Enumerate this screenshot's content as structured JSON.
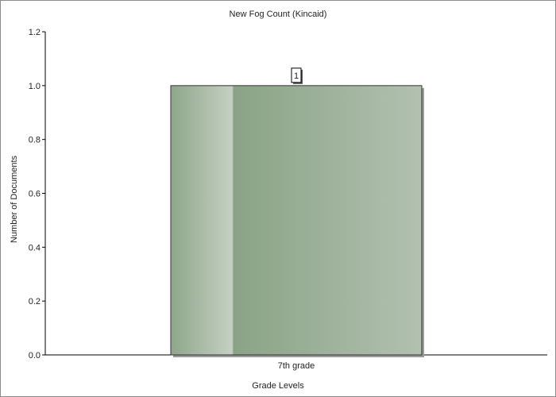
{
  "chart_data": {
    "type": "bar",
    "title": "New Fog Count (Kincaid)",
    "xlabel": "Grade Levels",
    "ylabel": "Number of Documents",
    "categories": [
      "7th grade"
    ],
    "values": [
      1
    ],
    "data_labels": [
      "1"
    ],
    "ylim": [
      0,
      1.2
    ],
    "yticks": [
      "0.0",
      "0.2",
      "0.4",
      "0.6",
      "0.8",
      "1.0",
      "1.2"
    ],
    "grid": false,
    "legend": "none",
    "bar_color": "#8fa68b"
  }
}
